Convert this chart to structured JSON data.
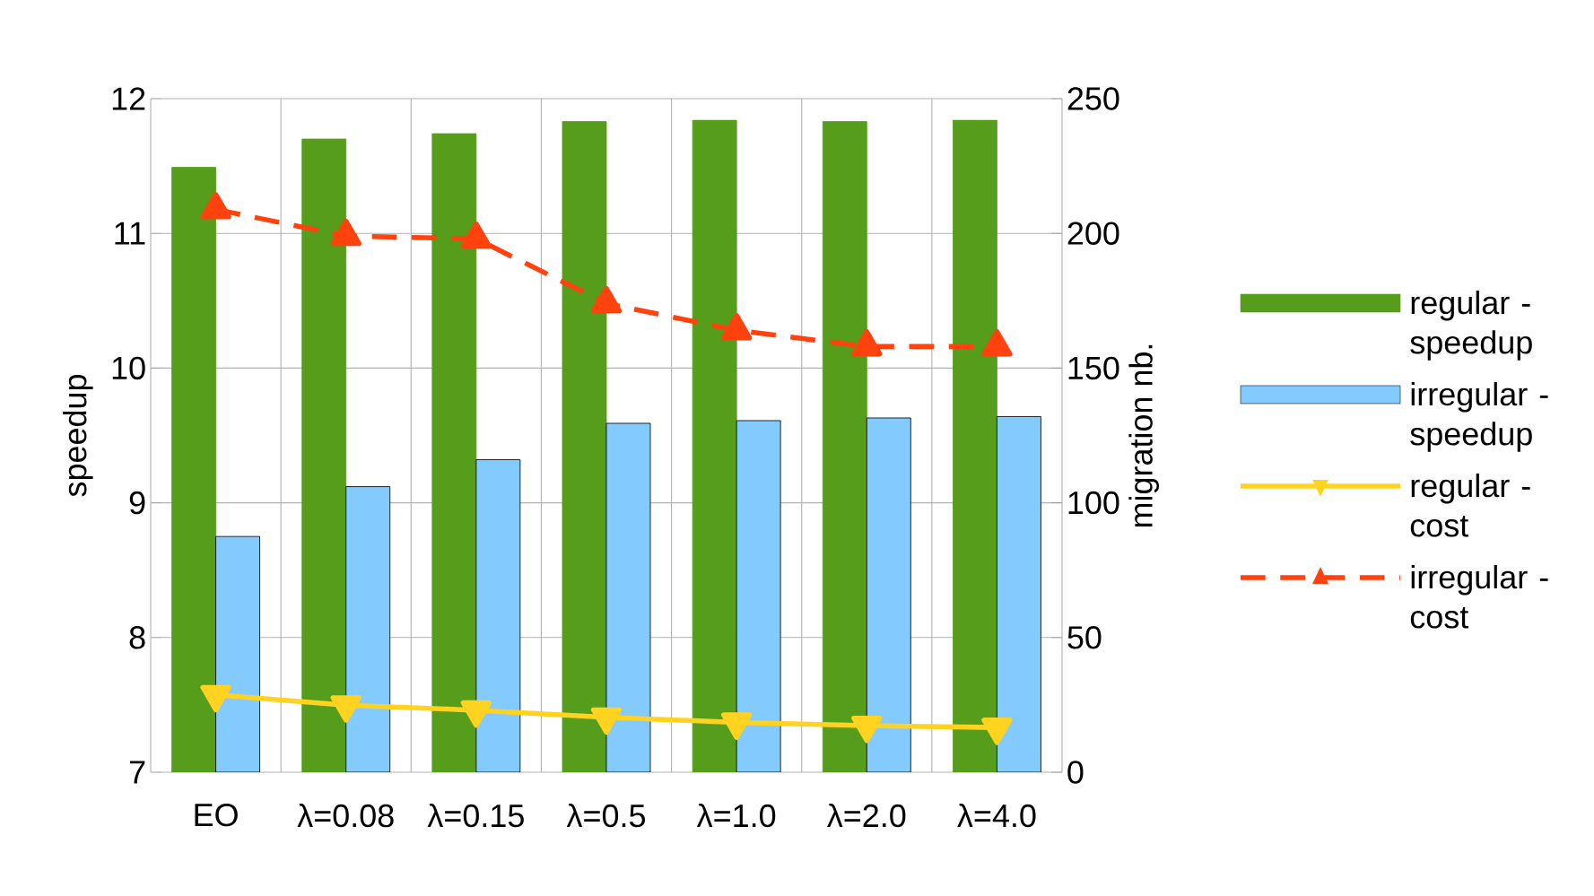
{
  "chart_data": {
    "type": "bar",
    "categories": [
      "EO",
      "λ=0.08",
      "λ=0.15",
      "λ=0.5",
      "λ=1.0",
      "λ=2.0",
      "λ=4.0"
    ],
    "ylabel": "speedup",
    "y2label": "migration nb.",
    "ylim": [
      7,
      12
    ],
    "yticks": [
      7,
      8,
      9,
      10,
      11,
      12
    ],
    "y2lim": [
      0,
      250
    ],
    "y2ticks": [
      0,
      50,
      100,
      150,
      200,
      250
    ],
    "grid": true,
    "legend": "right",
    "series": [
      {
        "name": "regular - speedup",
        "color": "#579d1c",
        "values": [
          11.49,
          11.7,
          11.74,
          11.83,
          11.84,
          11.83,
          11.84
        ]
      },
      {
        "name": "irregular - speedup",
        "color": "#83caff",
        "values": [
          8.75,
          9.12,
          9.32,
          9.59,
          9.61,
          9.63,
          9.64
        ]
      },
      {
        "name": "regular - cost",
        "type": "line",
        "axis": "y2",
        "color": "#ffd320",
        "marker": "triangle-down",
        "line_style": "solid",
        "values": [
          28.7,
          24.9,
          23.0,
          20.4,
          18.5,
          17.3,
          16.6
        ]
      },
      {
        "name": "irregular - cost",
        "type": "line",
        "axis": "y2",
        "color": "#ff420e",
        "marker": "triangle",
        "line_style": "dashed",
        "values": [
          208.9,
          199,
          198,
          174,
          164,
          158,
          158
        ]
      }
    ]
  }
}
